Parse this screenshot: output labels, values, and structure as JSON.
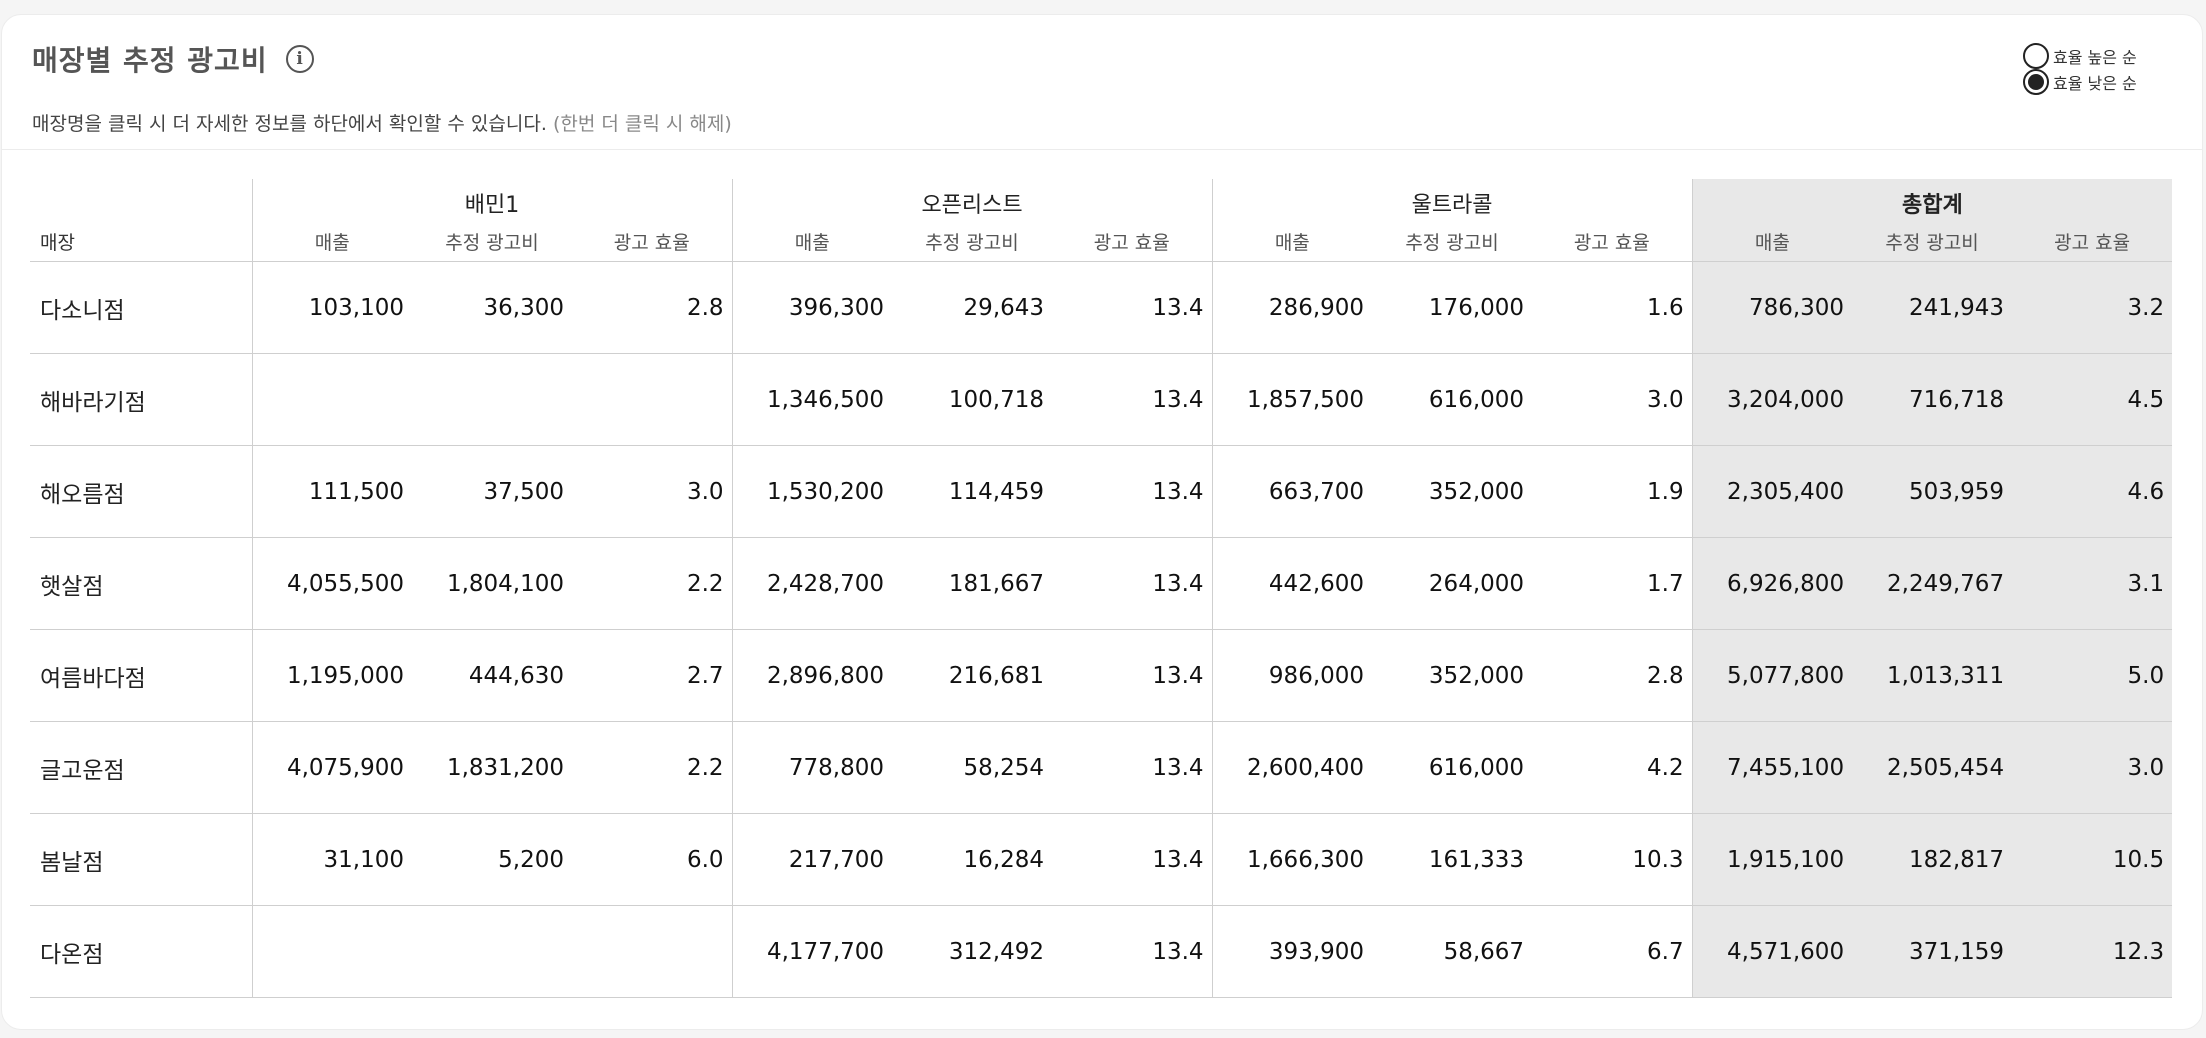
{
  "header": {
    "title": "매장별 추정 광고비",
    "subtitle_main": "매장명을 클릭 시 더 자세한 정보를 하단에서 확인할 수 있습니다.",
    "subtitle_hint": "(한번 더 클릭 시 해제)",
    "info_icon": "info-icon"
  },
  "sort": {
    "options": [
      {
        "label": "효율 높은 순",
        "selected": false
      },
      {
        "label": "효율 낮은 순",
        "selected": true
      }
    ]
  },
  "table": {
    "store_header": "매장",
    "groups": [
      "배민1",
      "오픈리스트",
      "울트라콜",
      "총합계"
    ],
    "sub_headers": [
      "매출",
      "추정 광고비",
      "광고 효율"
    ],
    "rows": [
      {
        "store": "다소니점",
        "cells": [
          "103,100",
          "36,300",
          "2.8",
          "396,300",
          "29,643",
          "13.4",
          "286,900",
          "176,000",
          "1.6",
          "786,300",
          "241,943",
          "3.2"
        ]
      },
      {
        "store": "해바라기점",
        "cells": [
          "",
          "",
          "",
          "1,346,500",
          "100,718",
          "13.4",
          "1,857,500",
          "616,000",
          "3.0",
          "3,204,000",
          "716,718",
          "4.5"
        ]
      },
      {
        "store": "해오름점",
        "cells": [
          "111,500",
          "37,500",
          "3.0",
          "1,530,200",
          "114,459",
          "13.4",
          "663,700",
          "352,000",
          "1.9",
          "2,305,400",
          "503,959",
          "4.6"
        ]
      },
      {
        "store": "햇살점",
        "cells": [
          "4,055,500",
          "1,804,100",
          "2.2",
          "2,428,700",
          "181,667",
          "13.4",
          "442,600",
          "264,000",
          "1.7",
          "6,926,800",
          "2,249,767",
          "3.1"
        ]
      },
      {
        "store": "여름바다점",
        "cells": [
          "1,195,000",
          "444,630",
          "2.7",
          "2,896,800",
          "216,681",
          "13.4",
          "986,000",
          "352,000",
          "2.8",
          "5,077,800",
          "1,013,311",
          "5.0"
        ]
      },
      {
        "store": "글고운점",
        "cells": [
          "4,075,900",
          "1,831,200",
          "2.2",
          "778,800",
          "58,254",
          "13.4",
          "2,600,400",
          "616,000",
          "4.2",
          "7,455,100",
          "2,505,454",
          "3.0"
        ]
      },
      {
        "store": "봄날점",
        "cells": [
          "31,100",
          "5,200",
          "6.0",
          "217,700",
          "16,284",
          "13.4",
          "1,666,300",
          "161,333",
          "10.3",
          "1,915,100",
          "182,817",
          "10.5"
        ]
      },
      {
        "store": "다온점",
        "cells": [
          "",
          "",
          "",
          "4,177,700",
          "312,492",
          "13.4",
          "393,900",
          "58,667",
          "6.7",
          "4,571,600",
          "371,159",
          "12.3"
        ]
      }
    ]
  },
  "colors": {
    "total_bg": "#e8e8e8",
    "border": "#cfcfcf"
  }
}
